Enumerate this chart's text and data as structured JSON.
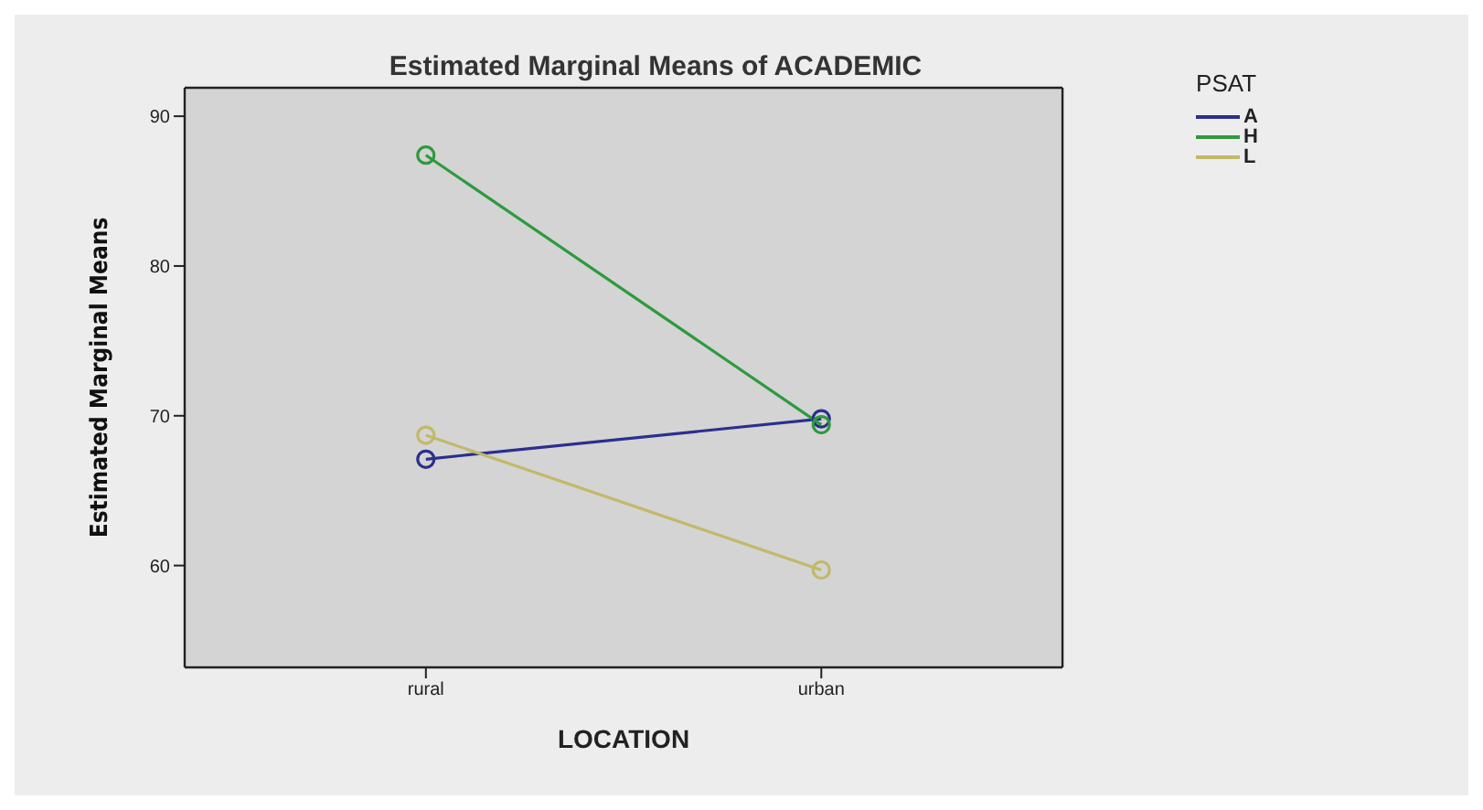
{
  "chart_data": {
    "type": "line",
    "title": "Estimated Marginal Means of ACADEMIC",
    "xlabel": "LOCATION",
    "ylabel": "Estimated Marginal Means",
    "legend_title": "PSAT",
    "categories": [
      "rural",
      "urban"
    ],
    "series": [
      {
        "name": "A",
        "color": "#2b2f8f",
        "values": [
          67.1,
          69.8
        ]
      },
      {
        "name": "H",
        "color": "#2e9a3e",
        "values": [
          87.4,
          69.4
        ]
      },
      {
        "name": "L",
        "color": "#c2b96a",
        "values": [
          68.7,
          59.7
        ]
      }
    ],
    "ylim": [
      53.2,
      91.9
    ],
    "yticks": [
      60,
      70,
      80,
      90
    ],
    "legend": "top right",
    "marker": "circle",
    "line_style": "solid"
  }
}
